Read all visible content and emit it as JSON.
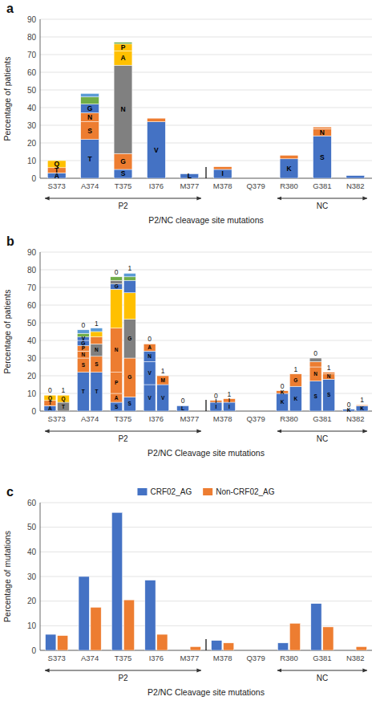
{
  "chart_data": [
    {
      "type": "bar",
      "stacked": true,
      "title": "a",
      "xlabel": "P2/NC cleavage site mutations",
      "ylabel": "Percentage of patients",
      "categories": [
        "S373",
        "A374",
        "T375",
        "I376",
        "M377",
        "M378",
        "Q379",
        "R380",
        "G381",
        "N382"
      ],
      "ylim": [
        0,
        90
      ],
      "yticks": [
        0,
        10,
        20,
        30,
        40,
        50,
        60,
        70,
        80,
        90
      ],
      "grid": true,
      "stacks": [
        [
          {
            "value": 3,
            "color": "#4472C4",
            "label": "A"
          },
          {
            "value": 3,
            "color": "#ED7D31",
            "label": "T"
          },
          {
            "value": 4,
            "color": "#FFC000",
            "label": "Q"
          }
        ],
        [
          {
            "value": 22,
            "color": "#4472C4",
            "label": "T"
          },
          {
            "value": 10,
            "color": "#ED7D31",
            "label": "S"
          },
          {
            "value": 5,
            "color": "#ED7D31",
            "label": "N"
          },
          {
            "value": 5,
            "color": "#4472C4",
            "label": "G"
          },
          {
            "value": 4,
            "color": "#70AD47"
          },
          {
            "value": 2,
            "color": "#5B9BD5"
          }
        ],
        [
          {
            "value": 5,
            "color": "#4472C4",
            "label": "S"
          },
          {
            "value": 9,
            "color": "#ED7D31",
            "label": "G"
          },
          {
            "value": 50,
            "color": "#808080",
            "label": "N"
          },
          {
            "value": 8,
            "color": "#FFC000",
            "label": "A"
          },
          {
            "value": 4,
            "color": "#FFC000",
            "label": "P"
          },
          {
            "value": 1,
            "color": "#70AD47"
          }
        ],
        [
          {
            "value": 32,
            "color": "#4472C4",
            "label": "V"
          },
          {
            "value": 2,
            "color": "#ED7D31"
          }
        ],
        [
          {
            "value": 2.5,
            "color": "#4472C4",
            "label": "L"
          }
        ],
        [
          {
            "value": 5,
            "color": "#4472C4",
            "label": "I"
          },
          {
            "value": 1.5,
            "color": "#ED7D31"
          }
        ],
        [],
        [
          {
            "value": 11,
            "color": "#4472C4",
            "label": "K"
          },
          {
            "value": 2,
            "color": "#ED7D31"
          }
        ],
        [
          {
            "value": 24,
            "color": "#4472C4",
            "label": "S"
          },
          {
            "value": 4,
            "color": "#ED7D31",
            "label": "N"
          },
          {
            "value": 1,
            "color": "#ED7D31"
          }
        ],
        [
          {
            "value": 1.5,
            "color": "#4472C4"
          }
        ]
      ],
      "brackets": [
        {
          "text": "P2",
          "from": "S373",
          "to": "M377"
        },
        {
          "text": "NC",
          "from": "R380",
          "to": "N382"
        }
      ]
    },
    {
      "type": "bar",
      "stacked": true,
      "title": "b",
      "xlabel": "P2/NC Cleavage site mutations",
      "ylabel": "Percentage of patients",
      "categories": [
        "S373",
        "A374",
        "T375",
        "I376",
        "M377",
        "M378",
        "Q379",
        "R380",
        "G381",
        "N382"
      ],
      "ylim": [
        0,
        90
      ],
      "yticks": [
        0,
        10,
        20,
        30,
        40,
        50,
        60,
        70,
        80,
        90
      ],
      "grid": true,
      "groups": [
        "0",
        "1"
      ],
      "stacks": [
        [
          [
            {
              "value": 3,
              "color": "#4472C4",
              "label": "A"
            },
            {
              "value": 3,
              "color": "#ED7D31",
              "label": "T"
            },
            {
              "value": 3,
              "color": "#FFC000",
              "label": "Q"
            }
          ],
          [
            {
              "value": 5,
              "color": "#808080",
              "label": "T"
            },
            {
              "value": 4,
              "color": "#FFC000",
              "label": "Q"
            }
          ]
        ],
        [
          [
            {
              "value": 22,
              "color": "#4472C4",
              "label": "T"
            },
            {
              "value": 8,
              "color": "#ED7D31",
              "label": "S"
            },
            {
              "value": 4,
              "color": "#ED7D31",
              "label": "N"
            },
            {
              "value": 3,
              "color": "#ED7D31",
              "label": "P"
            },
            {
              "value": 3,
              "color": "#4472C4",
              "label": "G"
            },
            {
              "value": 2,
              "color": "#4472C4",
              "label": "V"
            },
            {
              "value": 2,
              "color": "#70AD47"
            },
            {
              "value": 2,
              "color": "#5B9BD5"
            }
          ],
          [
            {
              "value": 22,
              "color": "#4472C4",
              "label": "T"
            },
            {
              "value": 9,
              "color": "#ED7D31",
              "label": "S"
            },
            {
              "value": 7,
              "color": "#808080",
              "label": "N"
            },
            {
              "value": 4,
              "color": "#ED7D31"
            },
            {
              "value": 3,
              "color": "#FFC000"
            },
            {
              "value": 2,
              "color": "#5B9BD5"
            }
          ]
        ],
        [
          [
            {
              "value": 5,
              "color": "#4472C4",
              "label": "S"
            },
            {
              "value": 5,
              "color": "#ED7D31",
              "label": "A"
            },
            {
              "value": 12,
              "color": "#ED7D31",
              "label": "P"
            },
            {
              "value": 25,
              "color": "#ED7D31",
              "label": "N"
            },
            {
              "value": 22,
              "color": "#FFC000"
            },
            {
              "value": 3,
              "color": "#4472C4",
              "label": "G"
            },
            {
              "value": 2,
              "color": "#808080"
            },
            {
              "value": 2,
              "color": "#70AD47"
            }
          ],
          [
            {
              "value": 8,
              "color": "#4472C4",
              "label": "S"
            },
            {
              "value": 22,
              "color": "#ED7D31",
              "label": "G"
            },
            {
              "value": 22,
              "color": "#808080",
              "label": "G"
            },
            {
              "value": 15,
              "color": "#FFC000"
            },
            {
              "value": 7,
              "color": "#4472C4"
            },
            {
              "value": 2,
              "color": "#70AD47"
            },
            {
              "value": 2,
              "color": "#5B9BD5"
            }
          ]
        ],
        [
          [
            {
              "value": 15,
              "color": "#4472C4",
              "label": "V"
            },
            {
              "value": 13,
              "color": "#4472C4",
              "label": "V"
            },
            {
              "value": 6,
              "color": "#4472C4",
              "label": "N"
            },
            {
              "value": 4,
              "color": "#ED7D31",
              "label": "A"
            }
          ],
          [
            {
              "value": 15,
              "color": "#4472C4",
              "label": "V"
            },
            {
              "value": 5,
              "color": "#ED7D31",
              "label": "M"
            }
          ]
        ],
        [
          [
            {
              "value": 3,
              "color": "#4472C4",
              "label": "L"
            }
          ],
          []
        ],
        [
          [
            {
              "value": 5,
              "color": "#4472C4",
              "label": "I"
            },
            {
              "value": 1,
              "color": "#ED7D31",
              "label": "I"
            }
          ],
          [
            {
              "value": 5,
              "color": "#4472C4",
              "label": "I"
            },
            {
              "value": 2,
              "color": "#ED7D31",
              "label": "I"
            }
          ]
        ],
        [
          [],
          []
        ],
        [
          [
            {
              "value": 10,
              "color": "#4472C4",
              "label": "K"
            },
            {
              "value": 1.5,
              "color": "#ED7D31",
              "label": "K"
            }
          ],
          [
            {
              "value": 14,
              "color": "#4472C4",
              "label": "K"
            },
            {
              "value": 7,
              "color": "#ED7D31",
              "label": "G"
            }
          ]
        ],
        [
          [
            {
              "value": 17,
              "color": "#4472C4",
              "label": "S"
            },
            {
              "value": 8,
              "color": "#ED7D31",
              "label": "N"
            },
            {
              "value": 3,
              "color": "#ED7D31"
            },
            {
              "value": 2,
              "color": "#808080"
            }
          ],
          [
            {
              "value": 18,
              "color": "#4472C4",
              "label": "S"
            },
            {
              "value": 3,
              "color": "#ED7D31",
              "label": "N"
            },
            {
              "value": 1,
              "color": "#ED7D31"
            }
          ]
        ],
        [
          [
            {
              "value": 1,
              "color": "#4472C4",
              "label": "K"
            }
          ],
          [
            {
              "value": 3,
              "color": "#4472C4",
              "label": "K"
            },
            {
              "value": 0.5,
              "color": "#ED7D31"
            }
          ]
        ]
      ],
      "brackets": [
        {
          "text": "P2",
          "from": "S373",
          "to": "M377"
        },
        {
          "text": "NC",
          "from": "R380",
          "to": "N382"
        }
      ]
    },
    {
      "type": "bar",
      "title": "c",
      "xlabel": "P2/NC Cleavage site mutations",
      "ylabel": "Percentage of mutations",
      "categories": [
        "S373",
        "A374",
        "T375",
        "I376",
        "M377",
        "M378",
        "Q379",
        "R380",
        "G381",
        "N382"
      ],
      "ylim": [
        0,
        60
      ],
      "yticks": [
        0,
        10,
        20,
        30,
        40,
        50,
        60
      ],
      "grid": true,
      "legend": "top",
      "series": [
        {
          "name": "CRF02_AG",
          "color": "#4472C4",
          "values": [
            6.5,
            30,
            56,
            28.5,
            0,
            4,
            0,
            3,
            19,
            0
          ]
        },
        {
          "name": "Non-CRF02_AG",
          "color": "#ED7D31",
          "values": [
            6,
            17.5,
            20.5,
            6.5,
            1.5,
            3,
            0,
            11,
            9.5,
            1.5
          ]
        }
      ],
      "brackets": [
        {
          "text": "P2",
          "from": "S373",
          "to": "M377"
        },
        {
          "text": "NC",
          "from": "R380",
          "to": "N382"
        }
      ]
    }
  ]
}
